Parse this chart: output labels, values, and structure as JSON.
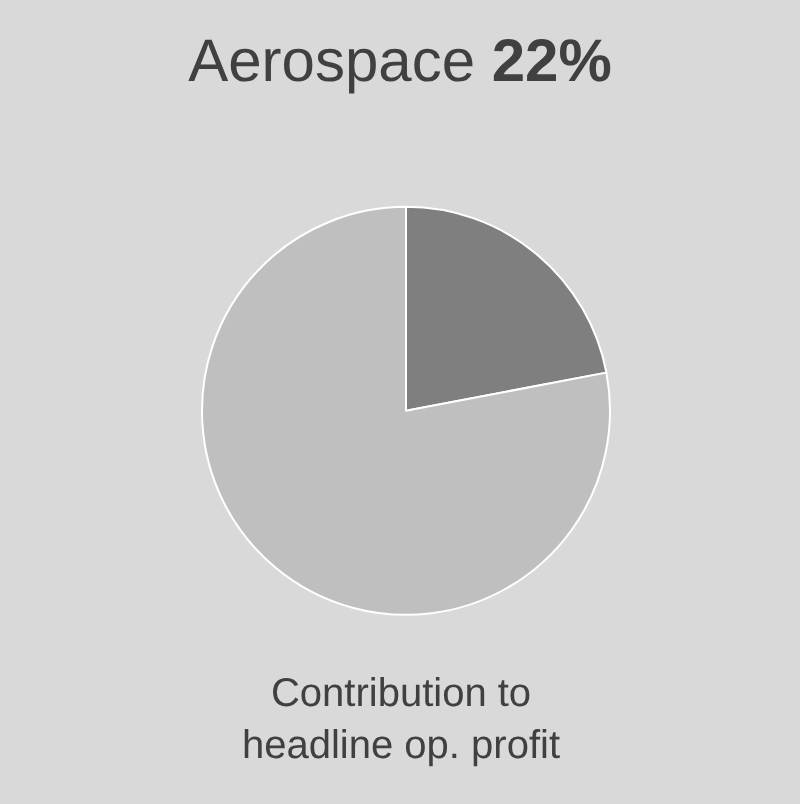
{
  "chart_data": {
    "type": "pie",
    "title": "Aerospace 22%",
    "categories": [
      null,
      null
    ],
    "values": [
      22,
      78
    ],
    "colors": [
      "#7f7f7f",
      "#bfbfbf"
    ],
    "annotations": [
      "Contribution to\nheadline op. profit"
    ],
    "legend": false
  }
}
